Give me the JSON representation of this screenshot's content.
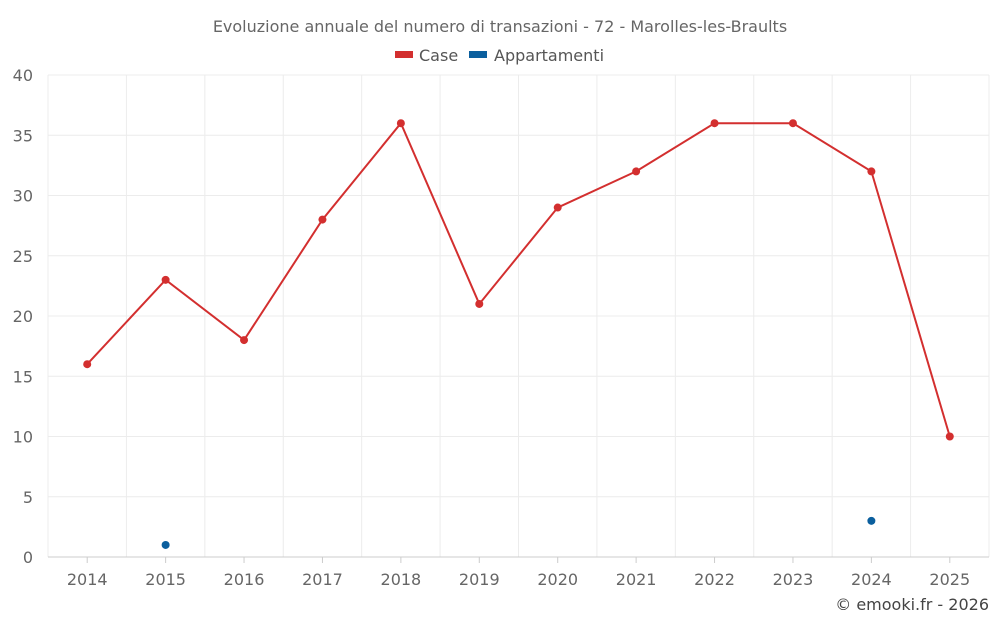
{
  "chart_data": {
    "type": "line",
    "title": "Evoluzione annuale del numero di transazioni - 72 - Marolles-les-Braults",
    "categories": [
      "2014",
      "2015",
      "2016",
      "2017",
      "2018",
      "2019",
      "2020",
      "2021",
      "2022",
      "2023",
      "2024",
      "2025"
    ],
    "ylim": [
      0,
      40
    ],
    "yticks": [
      0,
      5,
      10,
      15,
      20,
      25,
      30,
      35,
      40
    ],
    "grid": true,
    "legend_position": "top-center",
    "series": [
      {
        "name": "Case",
        "color": "#d32f2f",
        "values": [
          16,
          23,
          18,
          28,
          36,
          21,
          29,
          32,
          36,
          36,
          32,
          10
        ]
      },
      {
        "name": "Appartamenti",
        "color": "#0b5f9e",
        "values": [
          null,
          1,
          null,
          null,
          null,
          null,
          null,
          null,
          null,
          null,
          3,
          null
        ]
      }
    ],
    "credit": "© emooki.fr - 2026"
  }
}
